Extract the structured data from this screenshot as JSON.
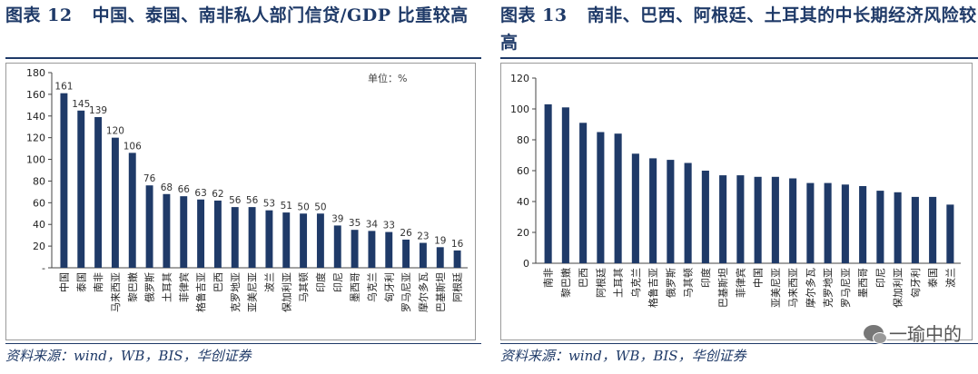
{
  "left_panel": {
    "fig_label": "图表 12",
    "title_text": "中国、泰国、南非私人部门信贷/GDP 比重较高",
    "source": "资料来源：wind，WB，BIS，华创证券"
  },
  "right_panel": {
    "fig_label": "图表 13",
    "title_text": "南非、巴西、阿根廷、土耳其的中长期经济风险较高",
    "source": "资料来源：wind，WB，BIS，华创证券"
  },
  "watermark": {
    "text": "一瑜中的",
    "icon": "wechat-icon"
  },
  "chart_data": [
    {
      "type": "bar",
      "title": "",
      "unit_label": "单位：%",
      "ylim": [
        0,
        180
      ],
      "yticks": [
        0,
        20,
        40,
        60,
        80,
        100,
        120,
        140,
        160,
        180
      ],
      "bottom_tick_label": "-",
      "categories": [
        "中国",
        "泰国",
        "南非",
        "马来西亚",
        "黎巴嫩",
        "俄罗斯",
        "土耳其",
        "菲律宾",
        "格鲁吉亚",
        "巴西",
        "克罗地亚",
        "亚美尼亚",
        "波兰",
        "保加利亚",
        "马其顿",
        "印度",
        "印尼",
        "墨西哥",
        "乌克兰",
        "匈牙利",
        "罗马尼亚",
        "摩尔多瓦",
        "巴基斯坦",
        "阿根廷"
      ],
      "values": [
        161,
        145,
        139,
        120,
        106,
        76,
        68,
        66,
        63,
        62,
        56,
        56,
        53,
        51,
        50,
        50,
        39,
        35,
        34,
        33,
        26,
        23,
        19,
        16
      ],
      "data_labels": true,
      "color": "#1f3a68"
    },
    {
      "type": "bar",
      "title": "",
      "ylim": [
        0,
        120
      ],
      "yticks": [
        0,
        20,
        40,
        60,
        80,
        100,
        120
      ],
      "categories": [
        "南非",
        "黎巴嫩",
        "巴西",
        "阿根廷",
        "土耳其",
        "乌克兰",
        "格鲁吉亚",
        "俄罗斯",
        "马其顿",
        "印度",
        "巴基斯坦",
        "菲律宾",
        "中国",
        "亚美尼亚",
        "马来西亚",
        "摩尔多瓦",
        "克罗地亚",
        "罗马尼亚",
        "墨西哥",
        "印尼",
        "保加利亚",
        "匈牙利",
        "泰国",
        "波兰"
      ],
      "values": [
        103,
        101,
        91,
        85,
        84,
        71,
        68,
        67,
        65,
        60,
        57,
        57,
        56,
        56,
        55,
        52,
        52,
        51,
        50,
        47,
        46,
        43,
        43,
        38
      ],
      "data_labels": false,
      "color": "#1f3a68"
    }
  ]
}
